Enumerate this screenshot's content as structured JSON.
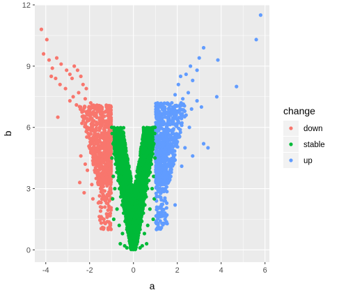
{
  "chart_data": {
    "type": "scatter",
    "title": "",
    "xlabel": "a",
    "ylabel": "b",
    "xlim": [
      -4.5,
      6.2
    ],
    "ylim": [
      -0.6,
      12.0
    ],
    "x_ticks": [
      -4,
      -2,
      0,
      2,
      4,
      6
    ],
    "y_ticks": [
      0,
      3,
      6,
      9,
      12
    ],
    "x_tick_labels": [
      "-4",
      "-2",
      "0",
      "2",
      "4",
      "6"
    ],
    "y_tick_labels": [
      "0",
      "3",
      "6",
      "9",
      "12"
    ],
    "grid": true,
    "panel_background": "#ebebeb",
    "grid_color": "#ffffff",
    "legend": {
      "title": "change",
      "position": "right"
    },
    "series": [
      {
        "name": "down",
        "color": "#f8766d",
        "points": [
          [
            -4.2,
            10.8
          ],
          [
            -3.95,
            10.3
          ],
          [
            -4.1,
            9.6
          ],
          [
            -3.85,
            9.3
          ],
          [
            -3.7,
            8.9
          ],
          [
            -3.5,
            9.4
          ],
          [
            -3.3,
            9.1
          ],
          [
            -3.05,
            8.8
          ],
          [
            -2.8,
            8.4
          ],
          [
            -2.9,
            8.6
          ],
          [
            -3.55,
            8.4
          ],
          [
            -3.75,
            8.5
          ],
          [
            -3.35,
            8.1
          ],
          [
            -3.1,
            7.9
          ],
          [
            -2.7,
            9.0
          ],
          [
            -2.55,
            8.8
          ],
          [
            -2.4,
            8.5
          ],
          [
            -2.3,
            8.1
          ],
          [
            -2.5,
            7.7
          ],
          [
            -2.2,
            7.4
          ],
          [
            -2.15,
            7.9
          ],
          [
            -1.95,
            7.2
          ],
          [
            -2.6,
            7.1
          ],
          [
            -2.9,
            7.3
          ],
          [
            -3.45,
            6.5
          ],
          [
            -2.75,
            7.5
          ],
          [
            -2.0,
            6.8
          ],
          [
            -1.8,
            7.0
          ],
          [
            -1.7,
            6.6
          ],
          [
            -1.55,
            6.9
          ],
          [
            -1.4,
            6.5
          ],
          [
            -1.25,
            6.8
          ],
          [
            -1.15,
            6.3
          ],
          [
            -1.6,
            6.2
          ],
          [
            -1.9,
            6.4
          ],
          [
            -2.1,
            6.0
          ],
          [
            -2.35,
            6.2
          ],
          [
            -1.35,
            5.9
          ],
          [
            -1.05,
            5.8
          ],
          [
            -1.2,
            5.4
          ],
          [
            -1.5,
            5.6
          ],
          [
            -1.75,
            5.7
          ],
          [
            -1.85,
            5.2
          ],
          [
            -2.0,
            5.0
          ],
          [
            -2.4,
            4.6
          ],
          [
            -2.2,
            4.2
          ],
          [
            -1.6,
            4.8
          ],
          [
            -1.3,
            5.0
          ],
          [
            -1.1,
            4.7
          ],
          [
            -1.45,
            4.4
          ],
          [
            -1.25,
            4.0
          ],
          [
            -1.05,
            3.8
          ],
          [
            -1.7,
            3.5
          ],
          [
            -1.9,
            3.2
          ],
          [
            -2.1,
            3.9
          ],
          [
            -1.5,
            3.0
          ],
          [
            -1.2,
            3.3
          ],
          [
            -1.05,
            2.9
          ],
          [
            -1.4,
            2.6
          ],
          [
            -1.6,
            2.3
          ],
          [
            -1.3,
            2.1
          ],
          [
            -1.1,
            2.4
          ],
          [
            -1.5,
            1.9
          ],
          [
            -1.2,
            1.6
          ],
          [
            -1.05,
            1.3
          ],
          [
            -1.35,
            1.5
          ],
          [
            -1.15,
            1.0
          ],
          [
            -1.6,
            4.1
          ],
          [
            -1.75,
            3.8
          ],
          [
            -2.45,
            3.3
          ],
          [
            -2.25,
            2.8
          ],
          [
            -1.85,
            2.5
          ]
        ]
      },
      {
        "name": "stable",
        "color": "#00ba38",
        "points": [
          [
            0.0,
            0.05
          ],
          [
            -0.08,
            0.2
          ],
          [
            0.08,
            0.2
          ],
          [
            -0.15,
            0.4
          ],
          [
            0.15,
            0.4
          ],
          [
            -0.22,
            0.7
          ],
          [
            0.22,
            0.7
          ],
          [
            -0.3,
            1.0
          ],
          [
            0.3,
            1.0
          ],
          [
            -0.38,
            1.4
          ],
          [
            0.38,
            1.4
          ],
          [
            -0.45,
            1.8
          ],
          [
            0.45,
            1.8
          ],
          [
            -0.52,
            2.2
          ],
          [
            0.52,
            2.2
          ],
          [
            -0.58,
            2.6
          ],
          [
            0.58,
            2.6
          ],
          [
            -0.64,
            3.0
          ],
          [
            0.64,
            3.0
          ],
          [
            -0.7,
            3.4
          ],
          [
            0.7,
            3.4
          ],
          [
            -0.76,
            3.8
          ],
          [
            0.76,
            3.8
          ],
          [
            -0.82,
            4.2
          ],
          [
            0.82,
            4.2
          ],
          [
            -0.88,
            4.7
          ],
          [
            0.88,
            4.7
          ],
          [
            -0.93,
            5.2
          ],
          [
            0.93,
            5.2
          ],
          [
            -0.97,
            5.7
          ],
          [
            0.97,
            5.7
          ],
          [
            -0.99,
            6.0
          ],
          [
            0.98,
            6.0
          ],
          [
            -0.6,
            0.3
          ],
          [
            0.6,
            0.3
          ],
          [
            -0.4,
            0.2
          ],
          [
            0.4,
            0.2
          ],
          [
            -0.9,
            1.5
          ],
          [
            0.9,
            1.5
          ],
          [
            -0.95,
            2.5
          ],
          [
            0.95,
            2.5
          ],
          [
            -0.85,
            3.0
          ],
          [
            0.85,
            3.0
          ],
          [
            -0.75,
            2.0
          ],
          [
            0.75,
            2.0
          ],
          [
            -0.65,
            1.2
          ],
          [
            0.65,
            1.2
          ],
          [
            -0.5,
            0.8
          ],
          [
            0.5,
            0.8
          ],
          [
            -0.3,
            0.1
          ],
          [
            0.3,
            0.1
          ],
          [
            -0.98,
            4.5
          ],
          [
            0.98,
            4.5
          ],
          [
            -0.92,
            3.6
          ],
          [
            0.92,
            3.6
          ]
        ]
      },
      {
        "name": "up",
        "color": "#619cff",
        "points": [
          [
            5.8,
            11.5
          ],
          [
            5.6,
            10.3
          ],
          [
            3.2,
            9.9
          ],
          [
            3.0,
            9.4
          ],
          [
            3.85,
            9.3
          ],
          [
            2.6,
            9.0
          ],
          [
            2.9,
            8.8
          ],
          [
            2.4,
            8.6
          ],
          [
            2.15,
            8.5
          ],
          [
            2.7,
            8.3
          ],
          [
            2.05,
            8.1
          ],
          [
            4.7,
            8.0
          ],
          [
            3.8,
            7.5
          ],
          [
            2.5,
            7.7
          ],
          [
            2.25,
            7.4
          ],
          [
            2.9,
            7.3
          ],
          [
            3.1,
            7.0
          ],
          [
            1.9,
            7.6
          ],
          [
            1.75,
            7.2
          ],
          [
            2.0,
            6.8
          ],
          [
            2.4,
            6.6
          ],
          [
            2.65,
            6.9
          ],
          [
            1.6,
            6.9
          ],
          [
            1.45,
            6.5
          ],
          [
            1.3,
            6.2
          ],
          [
            1.15,
            6.0
          ],
          [
            1.55,
            6.1
          ],
          [
            1.8,
            6.3
          ],
          [
            2.2,
            6.1
          ],
          [
            2.55,
            6.0
          ],
          [
            1.25,
            5.7
          ],
          [
            1.05,
            5.5
          ],
          [
            1.4,
            5.4
          ],
          [
            1.7,
            5.6
          ],
          [
            2.0,
            5.3
          ],
          [
            2.35,
            5.0
          ],
          [
            2.7,
            4.6
          ],
          [
            3.2,
            5.2
          ],
          [
            3.4,
            5.0
          ],
          [
            1.1,
            4.8
          ],
          [
            1.35,
            4.5
          ],
          [
            1.6,
            4.7
          ],
          [
            1.9,
            4.4
          ],
          [
            2.2,
            4.1
          ],
          [
            1.2,
            4.0
          ],
          [
            1.05,
            3.6
          ],
          [
            1.4,
            3.8
          ],
          [
            1.7,
            3.6
          ],
          [
            1.15,
            3.2
          ],
          [
            1.3,
            2.9
          ],
          [
            1.05,
            2.6
          ],
          [
            1.45,
            2.4
          ],
          [
            1.2,
            2.1
          ],
          [
            1.1,
            1.7
          ],
          [
            1.9,
            2.2
          ],
          [
            1.3,
            1.3
          ],
          [
            1.05,
            1.0
          ]
        ]
      }
    ]
  },
  "legend_items": {
    "down": "down",
    "stable": "stable",
    "up": "up"
  }
}
